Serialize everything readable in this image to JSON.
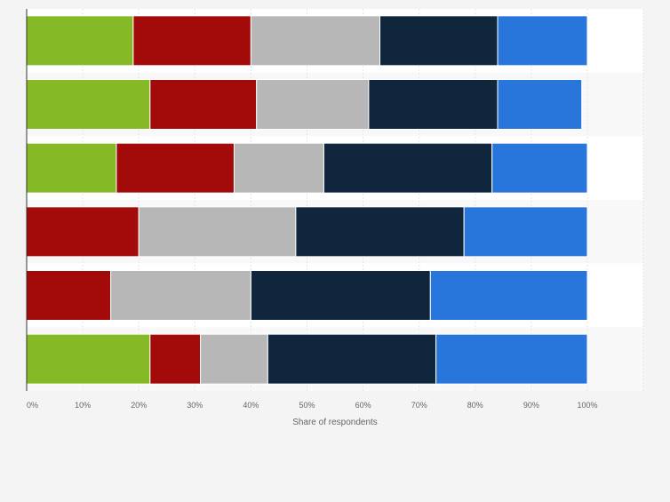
{
  "chart_data": {
    "type": "bar",
    "orientation": "horizontal",
    "stacked": true,
    "title": "",
    "xlabel": "Share of respondents",
    "ylabel": "",
    "xlim": [
      0,
      100
    ],
    "x_ticks": [
      "0%",
      "10%",
      "20%",
      "30%",
      "40%",
      "50%",
      "60%",
      "70%",
      "80%",
      "90%",
      "100%"
    ],
    "grid": true,
    "legend": "none",
    "categories": [
      "",
      "",
      "",
      "",
      "",
      ""
    ],
    "series": [
      {
        "color": "#86b926",
        "values": [
          19,
          22,
          16,
          0,
          0,
          22
        ]
      },
      {
        "color": "#a30a0a",
        "values": [
          21,
          19,
          21,
          20,
          15,
          9
        ]
      },
      {
        "color": "#b7b7b7",
        "values": [
          23,
          20,
          16,
          28,
          25,
          12
        ]
      },
      {
        "color": "#0f263d",
        "values": [
          21,
          23,
          30,
          30,
          32,
          30
        ]
      },
      {
        "color": "#2876dc",
        "values": [
          16,
          15,
          17,
          22,
          28,
          27
        ]
      }
    ]
  }
}
